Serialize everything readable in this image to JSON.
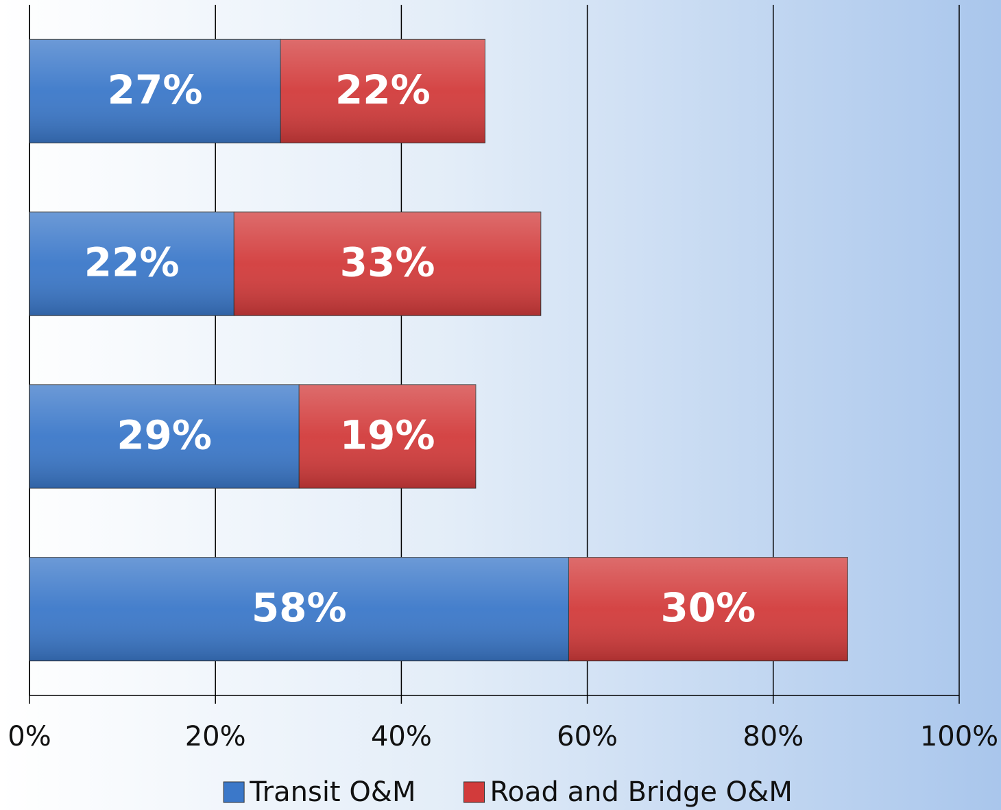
{
  "chart_data": {
    "type": "stacked-barh",
    "categories": [
      null,
      null,
      null,
      null
    ],
    "series": [
      {
        "name": "Transit O&M",
        "color": "#3b78c9",
        "values": [
          27,
          22,
          29,
          58
        ],
        "value_labels": [
          "27%",
          "22%",
          "29%",
          "58%"
        ]
      },
      {
        "name": "Road and Bridge O&M",
        "color": "#d23b3b",
        "values": [
          22,
          33,
          19,
          30
        ],
        "value_labels": [
          "22%",
          "33%",
          "19%",
          "30%"
        ]
      }
    ],
    "xlim": [
      0,
      100
    ],
    "xticks": [
      {
        "value": 0,
        "label": "0%"
      },
      {
        "value": 20,
        "label": "20%"
      },
      {
        "value": 40,
        "label": "40%"
      },
      {
        "value": 60,
        "label": "60%"
      },
      {
        "value": 80,
        "label": "80%"
      },
      {
        "value": 100,
        "label": "100%"
      }
    ],
    "grid": true,
    "legend": "bottom"
  }
}
